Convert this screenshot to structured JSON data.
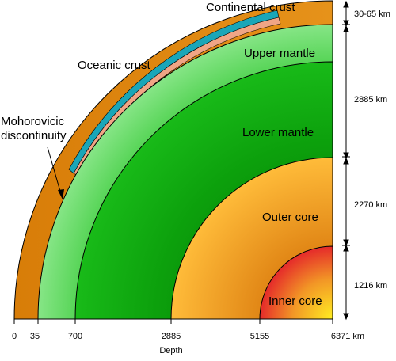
{
  "layers": {
    "continental_crust": "Continental crust",
    "oceanic_crust": "Oceanic crust",
    "moho": [
      "Mohorovicic",
      "discontinuity"
    ],
    "upper_mantle": "Upper mantle",
    "lower_mantle": "Lower mantle",
    "outer_core": "Outer core",
    "inner_core": "Inner core"
  },
  "thickness": {
    "crust": "30-65 km",
    "mantle": "2885 km",
    "outer_core": "2270 km",
    "inner_core": "1216 km"
  },
  "depth_axis": {
    "label": "Depth",
    "ticks": [
      "0",
      "35",
      "700",
      "2885",
      "5155",
      "6371 km"
    ]
  },
  "colors": {
    "crust_orange": "#e08a10",
    "oceanic_teal": "#1aa6b8",
    "oceanic_salmon": "#f0a585",
    "upper_mantle": "#8fe88f",
    "lower_mantle": "#22c522",
    "outer_core": "#f7a833",
    "inner_core_edge": "#e8302a",
    "inner_core_center": "#ffe21a"
  }
}
